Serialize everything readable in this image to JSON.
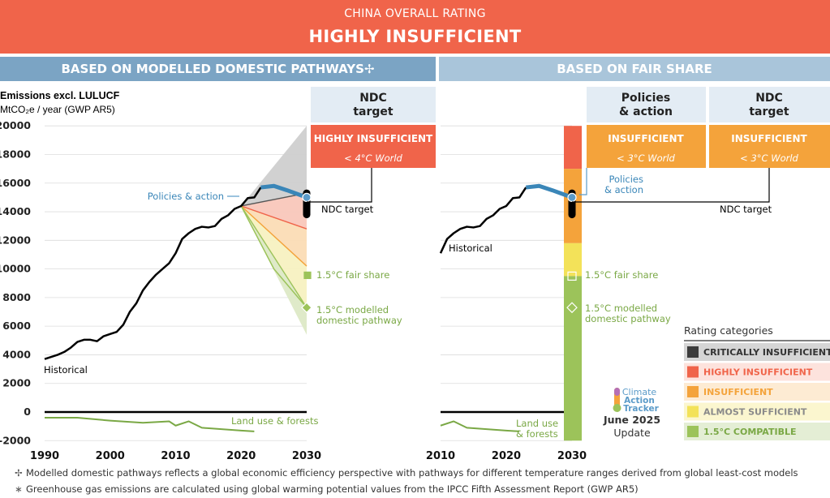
{
  "banner": {
    "subtitle": "CHINA OVERALL RATING",
    "rating": "HIGHLY INSUFFICIENT"
  },
  "section_headers": {
    "left": "BASED ON MODELLED DOMESTIC PATHWAYS✢",
    "right": "BASED ON FAIR SHARE"
  },
  "y_axis": {
    "title": "Emissions excl. LULUCF",
    "unit": "MtCO₂e / year (GWP AR5)"
  },
  "columns": {
    "left_ndc": {
      "header": [
        "NDC",
        "target"
      ],
      "rating": "HIGHLY INSUFFICIENT",
      "world": "< 4°C World",
      "color": "#f0644a"
    },
    "right_policies": {
      "header": [
        "Policies",
        "& action"
      ],
      "rating": "INSUFFICIENT",
      "world": "< 3°C World",
      "color": "#f4a33b"
    },
    "right_ndc": {
      "header": [
        "NDC",
        "target"
      ],
      "rating": "INSUFFICIENT",
      "world": "< 3°C World",
      "color": "#f4a33b"
    }
  },
  "labels": {
    "policies_action": "Policies & action",
    "policies_action_split": [
      "Policies",
      "& action"
    ],
    "ndc_target": "NDC target",
    "historical": "Historical",
    "fair_share": "1.5°C fair share",
    "modelled": [
      "1.5°C modelled",
      "domestic pathway"
    ],
    "land_use": "Land use & forests",
    "land_use_split": [
      "Land use",
      "& forests"
    ]
  },
  "legend": {
    "title": "Rating categories",
    "items": [
      {
        "label": "CRITICALLY INSUFFICIENT",
        "color": "#3c3c3c",
        "bg": "#d5d5d5",
        "text": "#333333"
      },
      {
        "label": "HIGHLY INSUFFICIENT",
        "color": "#f0644a",
        "bg": "#fde3dd",
        "text": "#f0644a"
      },
      {
        "label": "INSUFFICIENT",
        "color": "#f4a33b",
        "bg": "#fdebd3",
        "text": "#f4a33b"
      },
      {
        "label": "ALMOST SUFFICIENT",
        "color": "#f3e259",
        "bg": "#fbf6cf",
        "text": "#8a8a8a"
      },
      {
        "label": "1.5°C COMPATIBLE",
        "color": "#9cc35a",
        "bg": "#e4eed5",
        "text": "#7aa845"
      }
    ]
  },
  "logo": {
    "lines": [
      "Climate",
      "Action",
      "Tracker"
    ],
    "date": "June 2025",
    "update": "Update"
  },
  "footnotes": [
    {
      "symbol": "✢",
      "text": "Modelled domestic pathways reflects a global economic efficiency perspective with pathways for different temperature ranges derived from global least-cost models"
    },
    {
      "symbol": "∗",
      "text": "Greenhouse gas emissions are calculated using global warming potential values from the IPCC Fifth Assessment Report (GWP AR5)"
    }
  ],
  "chart_data": [
    {
      "type": "line",
      "panel": "modelled domestic pathways",
      "xlim": [
        1990,
        2030
      ],
      "ylim": [
        -2000,
        20000
      ],
      "x_ticks": [
        1990,
        2000,
        2010,
        2020,
        2030
      ],
      "y_ticks": [
        -2000,
        0,
        2000,
        4000,
        6000,
        8000,
        10000,
        12000,
        14000,
        16000,
        18000,
        20000
      ],
      "series": [
        {
          "name": "Historical",
          "x": [
            1990,
            1991,
            1992,
            1993,
            1994,
            1995,
            1996,
            1997,
            1998,
            1999,
            2000,
            2001,
            2002,
            2003,
            2004,
            2005,
            2006,
            2007,
            2008,
            2009,
            2010,
            2011,
            2012,
            2013,
            2014,
            2015,
            2016,
            2017,
            2018,
            2019,
            2020,
            2021,
            2022,
            2023
          ],
          "values": [
            3700,
            3850,
            4000,
            4200,
            4500,
            4900,
            5050,
            5050,
            4950,
            5300,
            5450,
            5600,
            6100,
            7000,
            7600,
            8500,
            9100,
            9600,
            10000,
            10400,
            11100,
            12100,
            12500,
            12800,
            12950,
            12900,
            13000,
            13500,
            13750,
            14200,
            14400,
            14950,
            15000,
            15700
          ]
        },
        {
          "name": "Policies & action",
          "x": [
            2023,
            2025,
            2027,
            2030
          ],
          "values": [
            15700,
            15800,
            15500,
            15000
          ]
        },
        {
          "name": "Land use & forests",
          "x": [
            1990,
            1995,
            2000,
            2005,
            2009,
            2010,
            2012,
            2014,
            2020,
            2022
          ],
          "values": [
            -400,
            -400,
            -600,
            -750,
            -650,
            -950,
            -650,
            -1100,
            -1300,
            -1350
          ]
        }
      ],
      "rating_bands_2030": [
        {
          "name": "CRITICALLY INSUFFICIENT",
          "from": 15300,
          "to": 20000
        },
        {
          "name": "HIGHLY INSUFFICIENT",
          "from": 12800,
          "to": 15300
        },
        {
          "name": "INSUFFICIENT",
          "from": 10200,
          "to": 12800
        },
        {
          "name": "ALMOST SUFFICIENT",
          "from": 7300,
          "to": 10200
        },
        {
          "name": "1.5°C COMPATIBLE",
          "from": 5400,
          "to": 7300
        }
      ],
      "ndc_target_2030": [
        13800,
        15300
      ],
      "fair_share_2030": 9500,
      "modelled_pathway_2030": 7300
    },
    {
      "type": "line",
      "panel": "fair share",
      "xlim": [
        2010,
        2030
      ],
      "ylim": [
        -2000,
        20000
      ],
      "x_ticks": [
        2010,
        2020,
        2030
      ],
      "series": [
        {
          "name": "Historical",
          "x": [
            2010,
            2011,
            2012,
            2013,
            2014,
            2015,
            2016,
            2017,
            2018,
            2019,
            2020,
            2021,
            2022,
            2023
          ],
          "values": [
            11100,
            12100,
            12500,
            12800,
            12950,
            12900,
            13000,
            13500,
            13750,
            14200,
            14400,
            14950,
            15000,
            15700
          ]
        },
        {
          "name": "Policies & action",
          "x": [
            2023,
            2025,
            2027,
            2030
          ],
          "values": [
            15700,
            15800,
            15500,
            15000
          ]
        },
        {
          "name": "Land use & forests",
          "x": [
            2010,
            2012,
            2014,
            2020,
            2022
          ],
          "values": [
            -950,
            -650,
            -1100,
            -1300,
            -1350
          ]
        }
      ],
      "rating_bands_2030": [
        {
          "name": "HIGHLY INSUFFICIENT",
          "from": 17000,
          "to": 20000
        },
        {
          "name": "INSUFFICIENT",
          "from": 11800,
          "to": 17000
        },
        {
          "name": "ALMOST SUFFICIENT",
          "from": 9500,
          "to": 11800
        },
        {
          "name": "1.5°C COMPATIBLE",
          "from": -2000,
          "to": 9500
        }
      ],
      "ndc_target_2030": [
        13800,
        15300
      ],
      "fair_share_2030": 9500,
      "modelled_pathway_2030": 7300
    }
  ]
}
